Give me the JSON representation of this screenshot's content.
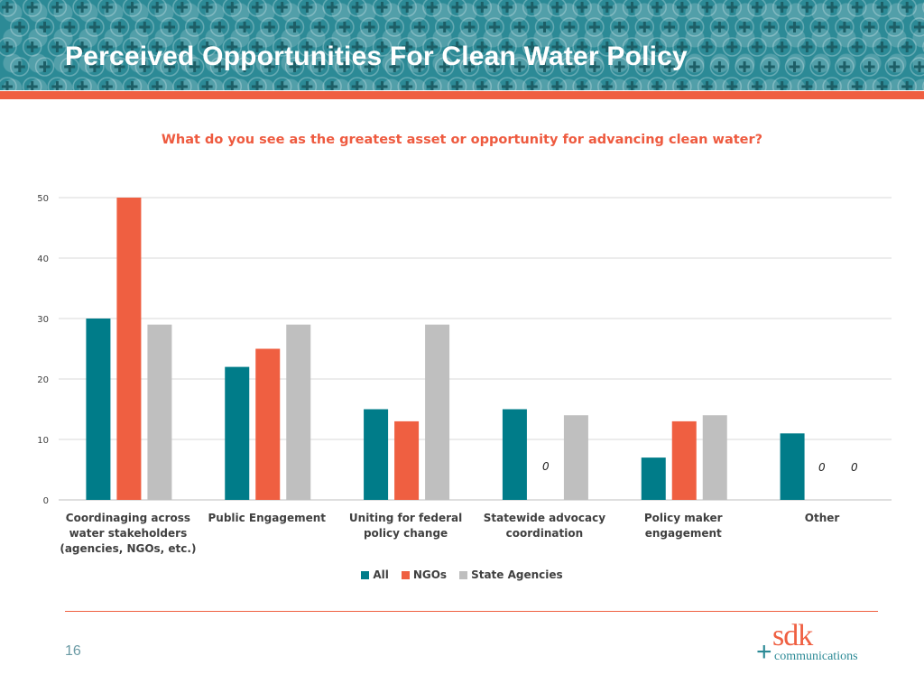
{
  "slide": {
    "title": "Perceived Opportunities For Clean Water Policy",
    "page_number": "16"
  },
  "logo": {
    "wordmark": "sdk",
    "subtext": "communications",
    "plus": "+"
  },
  "colors": {
    "banner": "#2c8a96",
    "accent": "#ef5f41",
    "all": "#007c89",
    "ngos": "#ef5f41",
    "state_agencies": "#bfbfbf"
  },
  "chart_data": {
    "type": "bar",
    "title": "What do you see as the greatest asset or opportunity for advancing clean water?",
    "categories": [
      "Coordinaging across water stakeholders (agencies, NGOs, etc.)",
      "Public Engagement",
      "Uniting for federal policy change",
      "Statewide advocacy coordination",
      "Policy maker engagement",
      "Other"
    ],
    "series": [
      {
        "name": "All",
        "values": [
          30,
          22,
          15,
          15,
          7,
          11
        ]
      },
      {
        "name": "NGOs",
        "values": [
          50,
          25,
          13,
          0,
          13,
          0
        ]
      },
      {
        "name": "State Agencies",
        "values": [
          29,
          29,
          29,
          14,
          14,
          0
        ]
      }
    ],
    "ylim": [
      0,
      50
    ],
    "yticks": [
      0,
      10,
      20,
      30,
      40,
      50
    ],
    "grid": true,
    "legend": "bottom-center",
    "annotations": [
      "0",
      "0",
      "0"
    ]
  }
}
